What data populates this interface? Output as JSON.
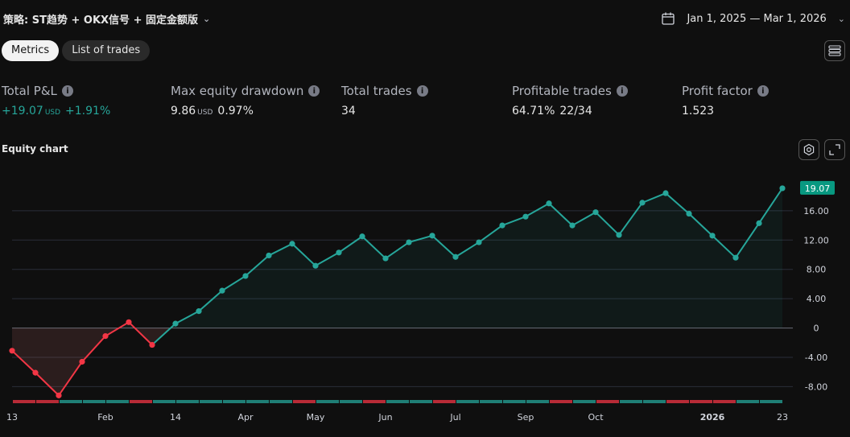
{
  "header": {
    "strategy_title": "策略: ST趋势 + OKX信号 + 固定金额版",
    "date_range": "Jan 1, 2025 — Mar 1, 2026"
  },
  "tabs": [
    {
      "label": "Metrics",
      "active": true
    },
    {
      "label": "List of trades",
      "active": false
    }
  ],
  "metrics": {
    "total_pnl": {
      "label": "Total P&L",
      "value": "+19.07",
      "unit": "USD",
      "percent": "+1.91%"
    },
    "max_drawdown": {
      "label": "Max equity drawdown",
      "value": "9.86",
      "unit": "USD",
      "percent": "0.97%"
    },
    "total_trades": {
      "label": "Total trades",
      "value": "34"
    },
    "profitable_trades": {
      "label": "Profitable trades",
      "percent": "64.71%",
      "ratio": "22/34"
    },
    "profit_factor": {
      "label": "Profit factor",
      "value": "1.523"
    }
  },
  "equity_chart_title": "Equity chart",
  "colors": {
    "positive": "#26a69a",
    "negative": "#f23645",
    "background": "#0f0f0f",
    "last_value_badge": "#089981"
  },
  "icons": [
    "chevron-down-icon",
    "calendar-icon",
    "menu-icon",
    "info-icon",
    "settings-icon",
    "expand-icon"
  ],
  "chart_data": {
    "type": "line",
    "title": "Equity chart",
    "ylim": [
      -9.6,
      20.6
    ],
    "y_ticks": [
      "16.00",
      "12.00",
      "8.00",
      "4.00",
      "0",
      "-4.00",
      "-8.00"
    ],
    "y_tick_values": [
      16,
      12,
      8,
      4,
      0,
      -4,
      -8
    ],
    "x_tick_labels": [
      "13",
      "Feb",
      "14",
      "Apr",
      "May",
      "Jun",
      "Jul",
      "Sep",
      "Oct",
      "2026",
      "23"
    ],
    "x_tick_trades": [
      0,
      4,
      7,
      10,
      13,
      16,
      19,
      22,
      25,
      30,
      33
    ],
    "last_value_label": "19.07",
    "series": [
      {
        "trade_index": [
          0,
          1,
          2,
          3,
          4,
          5,
          6,
          7,
          8,
          9,
          10,
          11,
          12,
          13,
          14,
          15,
          16,
          17,
          18,
          19,
          20,
          21,
          22,
          23,
          24,
          25,
          26,
          27,
          28,
          29,
          30,
          31,
          32,
          33
        ],
        "values": [
          -3.1,
          -6.1,
          -9.2,
          -4.6,
          -1.1,
          0.8,
          -2.3,
          0.6,
          2.3,
          5.1,
          7.1,
          9.9,
          11.5,
          8.5,
          10.3,
          12.5,
          9.5,
          11.7,
          12.6,
          9.7,
          11.7,
          14.0,
          15.2,
          17.0,
          14.0,
          15.8,
          12.7,
          17.1,
          18.4,
          15.6,
          12.6,
          9.6,
          14.3,
          19.07
        ]
      }
    ]
  }
}
